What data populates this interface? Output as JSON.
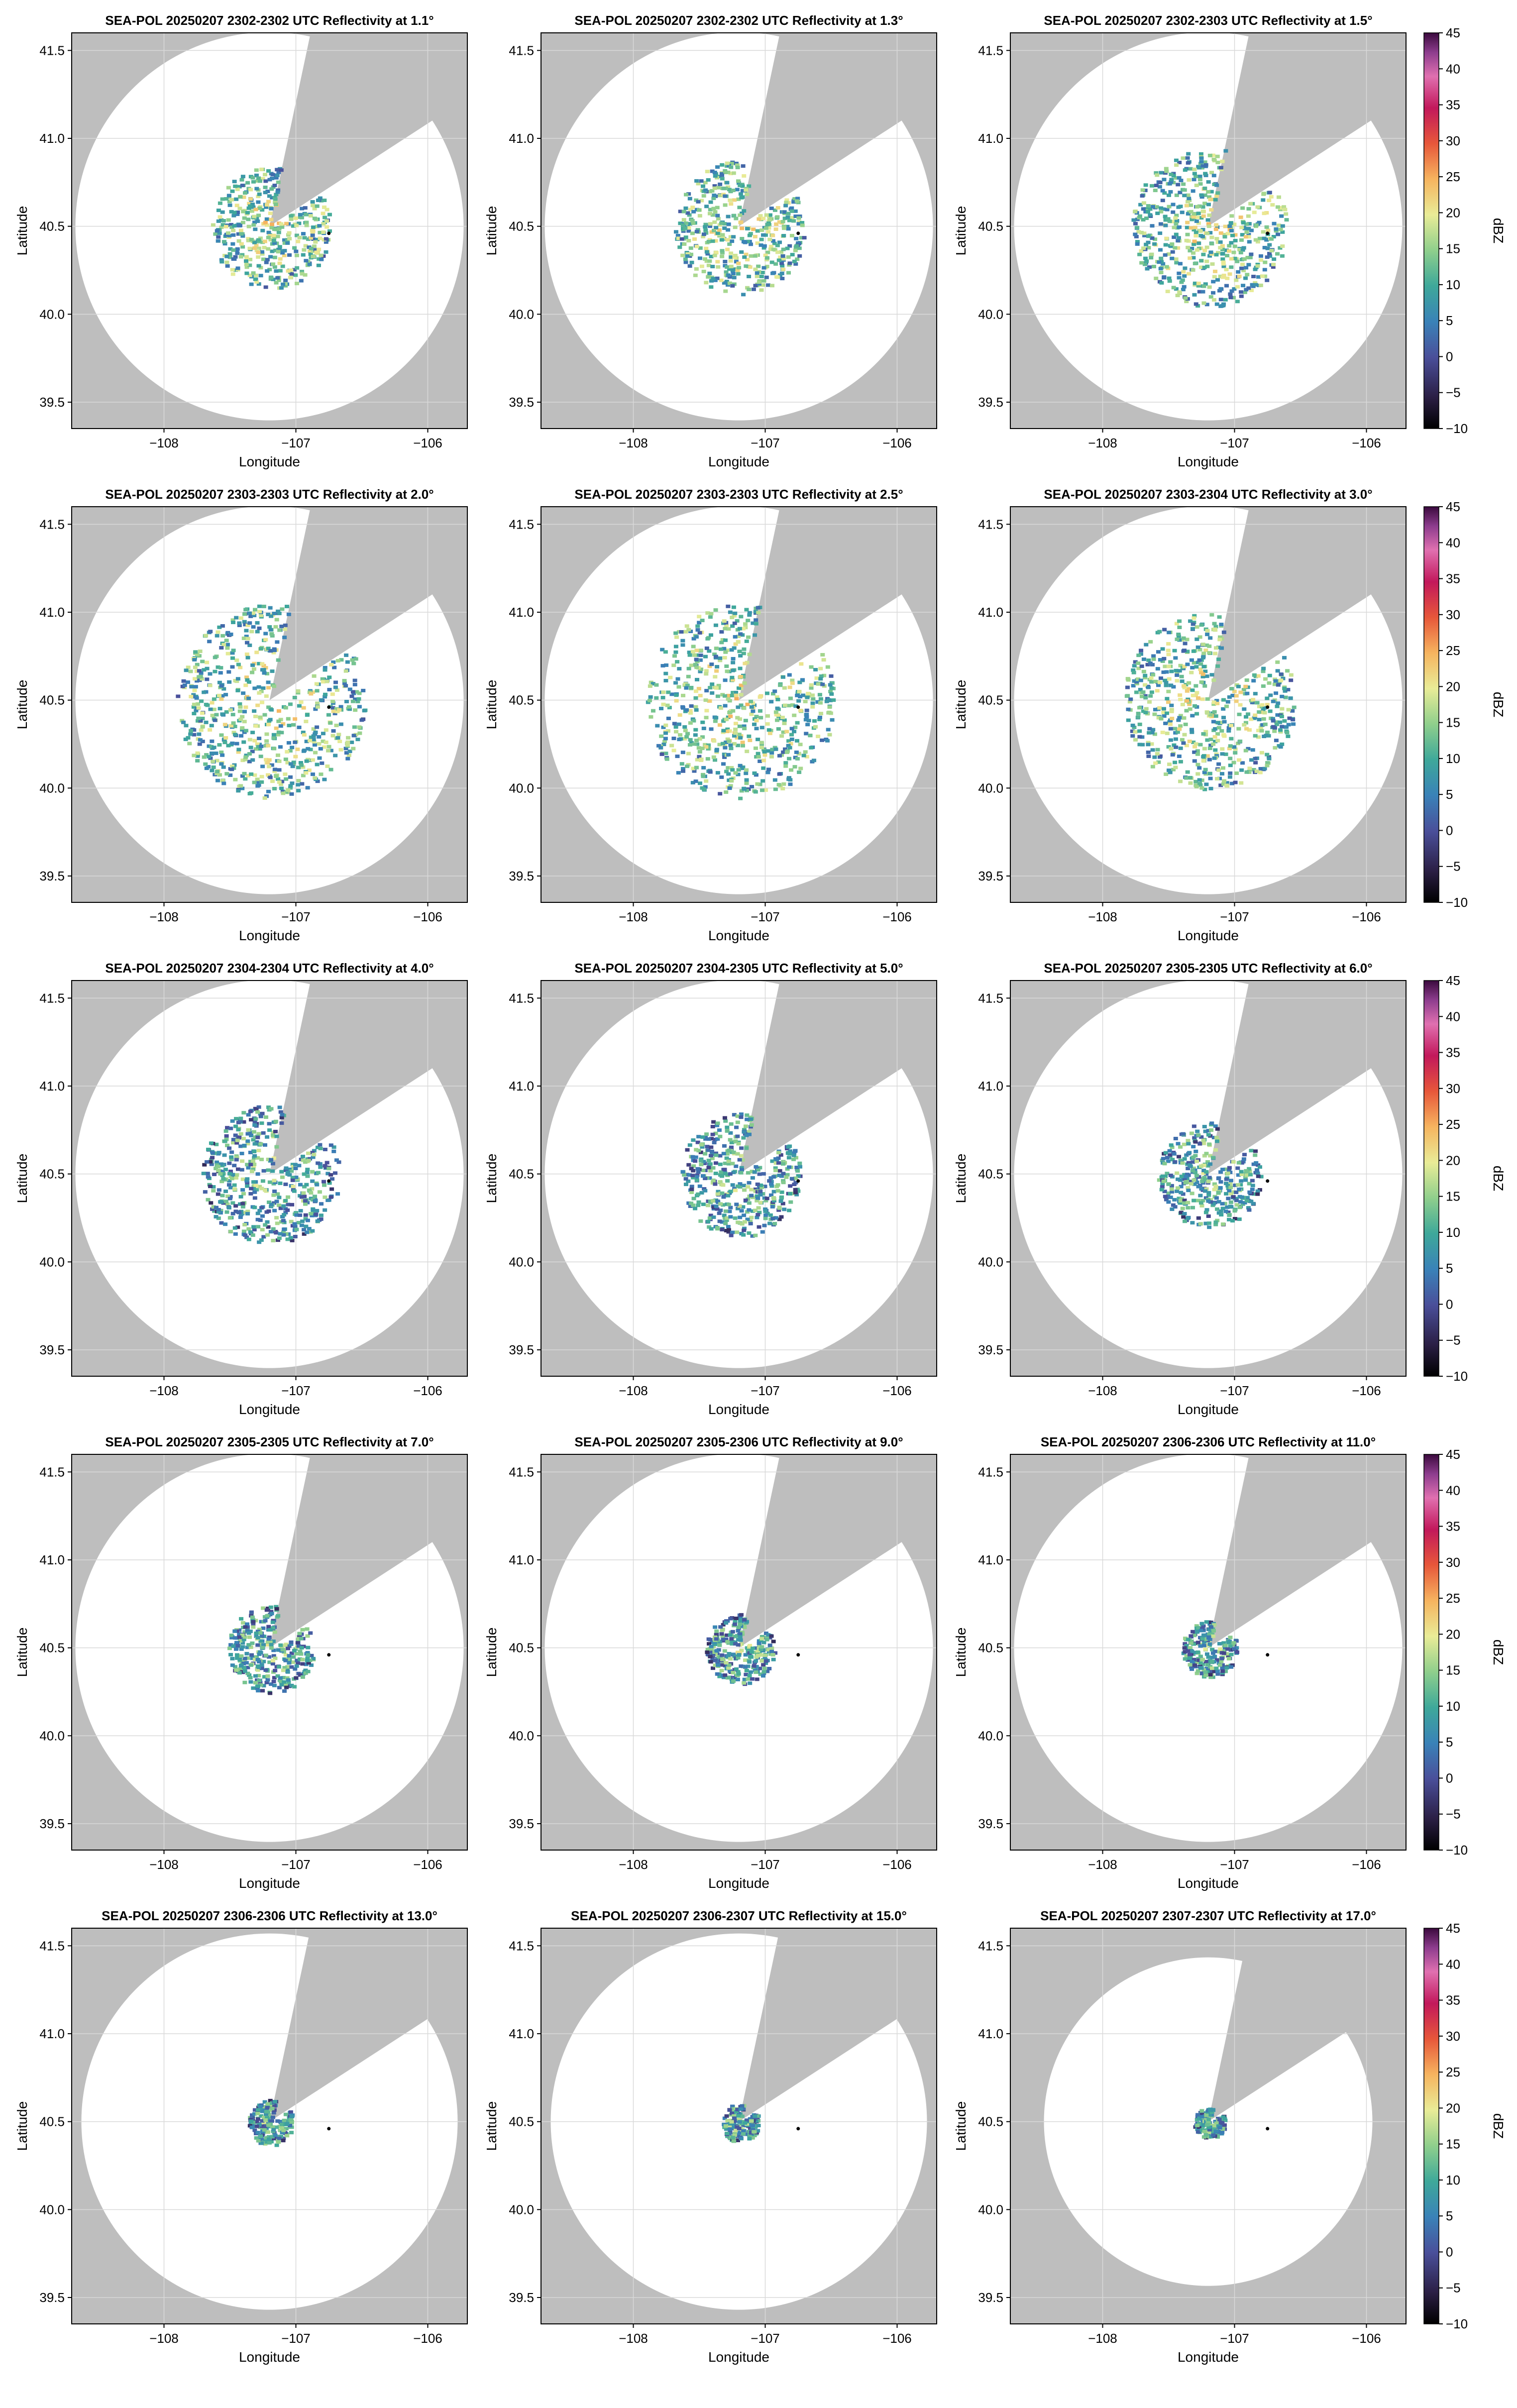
{
  "figure": {
    "xlabel": "Longitude",
    "ylabel": "Latitude",
    "colorbar_label": "dBZ",
    "colorbar_ticks": [
      "45",
      "40",
      "35",
      "30",
      "25",
      "20",
      "15",
      "10",
      "5",
      "0",
      "−5",
      "−10"
    ],
    "xticks": [
      "−108",
      "−107",
      "−106"
    ],
    "yticks": [
      "41.5",
      "41.0",
      "40.5",
      "40.0",
      "39.5"
    ]
  },
  "chart_data": {
    "type": "heatmap",
    "variable": "Reflectivity",
    "units": "dBZ",
    "color_range": [
      -10,
      45
    ],
    "xlim": [
      -108.7,
      -105.7
    ],
    "ylim": [
      39.35,
      41.6
    ],
    "grid": true,
    "colorbar_position": "right",
    "panels": [
      {
        "title": "SEA-POL 20250207 2302-2302 UTC Reflectivity at 1.1°",
        "elevation_deg": 1.1,
        "echo_radius_deg": 0.35
      },
      {
        "title": "SEA-POL 20250207 2302-2302 UTC Reflectivity at 1.3°",
        "elevation_deg": 1.3,
        "echo_radius_deg": 0.38
      },
      {
        "title": "SEA-POL 20250207 2302-2303 UTC Reflectivity at 1.5°",
        "elevation_deg": 1.5,
        "echo_radius_deg": 0.45
      },
      {
        "title": "SEA-POL 20250207 2303-2303 UTC Reflectivity at 2.0°",
        "elevation_deg": 2.0,
        "echo_radius_deg": 0.55
      },
      {
        "title": "SEA-POL 20250207 2303-2303 UTC Reflectivity at 2.5°",
        "elevation_deg": 2.5,
        "echo_radius_deg": 0.55
      },
      {
        "title": "SEA-POL 20250207 2303-2304 UTC Reflectivity at 3.0°",
        "elevation_deg": 3.0,
        "echo_radius_deg": 0.5
      },
      {
        "title": "SEA-POL 20250207 2304-2304 UTC Reflectivity at 4.0°",
        "elevation_deg": 4.0,
        "echo_radius_deg": 0.4
      },
      {
        "title": "SEA-POL 20250207 2304-2305 UTC Reflectivity at 5.0°",
        "elevation_deg": 5.0,
        "echo_radius_deg": 0.35
      },
      {
        "title": "SEA-POL 20250207 2305-2305 UTC Reflectivity at 6.0°",
        "elevation_deg": 6.0,
        "echo_radius_deg": 0.3
      },
      {
        "title": "SEA-POL 20250207 2305-2305 UTC Reflectivity at 7.0°",
        "elevation_deg": 7.0,
        "echo_radius_deg": 0.25
      },
      {
        "title": "SEA-POL 20250207 2305-2306 UTC Reflectivity at 9.0°",
        "elevation_deg": 9.0,
        "echo_radius_deg": 0.2
      },
      {
        "title": "SEA-POL 20250207 2306-2306 UTC Reflectivity at 11.0°",
        "elevation_deg": 11.0,
        "echo_radius_deg": 0.16
      },
      {
        "title": "SEA-POL 20250207 2306-2306 UTC Reflectivity at 13.0°",
        "elevation_deg": 13.0,
        "echo_radius_deg": 0.13
      },
      {
        "title": "SEA-POL 20250207 2306-2307 UTC Reflectivity at 15.0°",
        "elevation_deg": 15.0,
        "echo_radius_deg": 0.11
      },
      {
        "title": "SEA-POL 20250207 2307-2307 UTC Reflectivity at 17.0°",
        "elevation_deg": 17.0,
        "echo_radius_deg": 0.09
      }
    ]
  }
}
